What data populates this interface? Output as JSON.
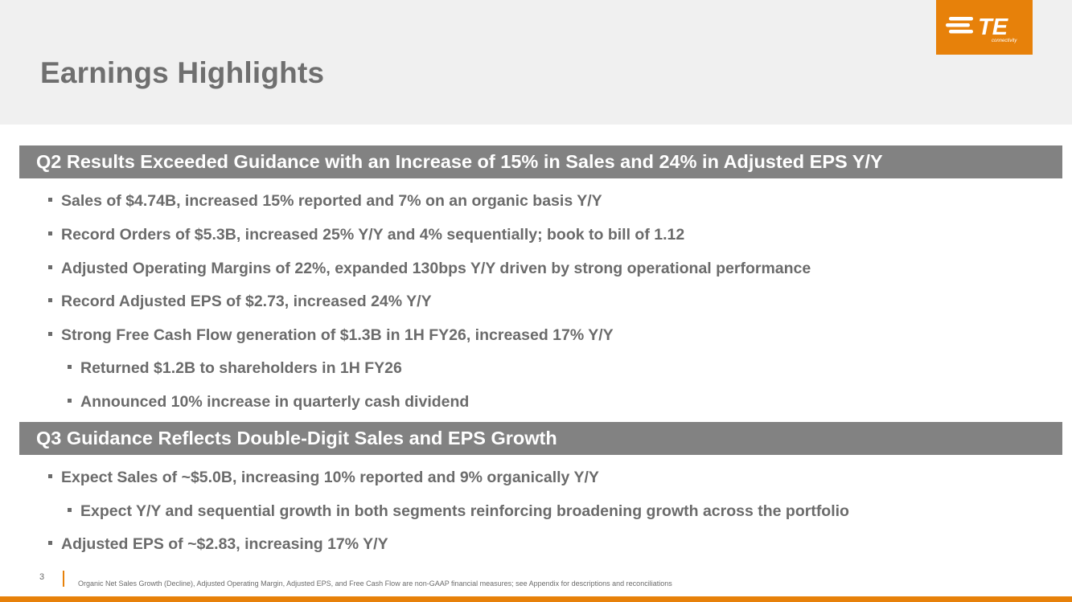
{
  "header": {
    "title": "Earnings Highlights",
    "logo_text": "TE",
    "logo_subtext": "connectivity",
    "brand_color": "#e7810a"
  },
  "sections": [
    {
      "heading": "Q2 Results Exceeded Guidance with an Increase of 15% in Sales and 24% in Adjusted EPS Y/Y",
      "bullets": [
        "Sales of $4.74B, increased 15% reported and 7% on an organic basis Y/Y",
        "Record Orders of $5.3B, increased 25% Y/Y and 4% sequentially; book to bill of 1.12",
        "Adjusted Operating Margins of 22%, expanded 130bps Y/Y driven by strong operational performance",
        "Record Adjusted EPS of $2.73, increased 24% Y/Y",
        "Strong Free Cash Flow generation of $1.3B in 1H FY26, increased 17% Y/Y",
        "Returned $1.2B to shareholders in 1H FY26",
        "Announced 10% increase in quarterly cash dividend"
      ]
    },
    {
      "heading": "Q3 Guidance Reflects Double-Digit Sales and EPS Growth",
      "bullets": [
        "Expect Sales of ~$5.0B, increasing 10% reported and 9% organically Y/Y",
        "Expect Y/Y and sequential growth in both segments reinforcing broadening growth across the portfolio",
        "Adjusted EPS of ~$2.83, increasing 17% Y/Y"
      ]
    }
  ],
  "footer": {
    "page_number": "3",
    "note": "Organic Net Sales Growth (Decline), Adjusted Operating Margin, Adjusted EPS, and Free Cash Flow are non-GAAP financial measures; see Appendix for descriptions and reconciliations"
  }
}
